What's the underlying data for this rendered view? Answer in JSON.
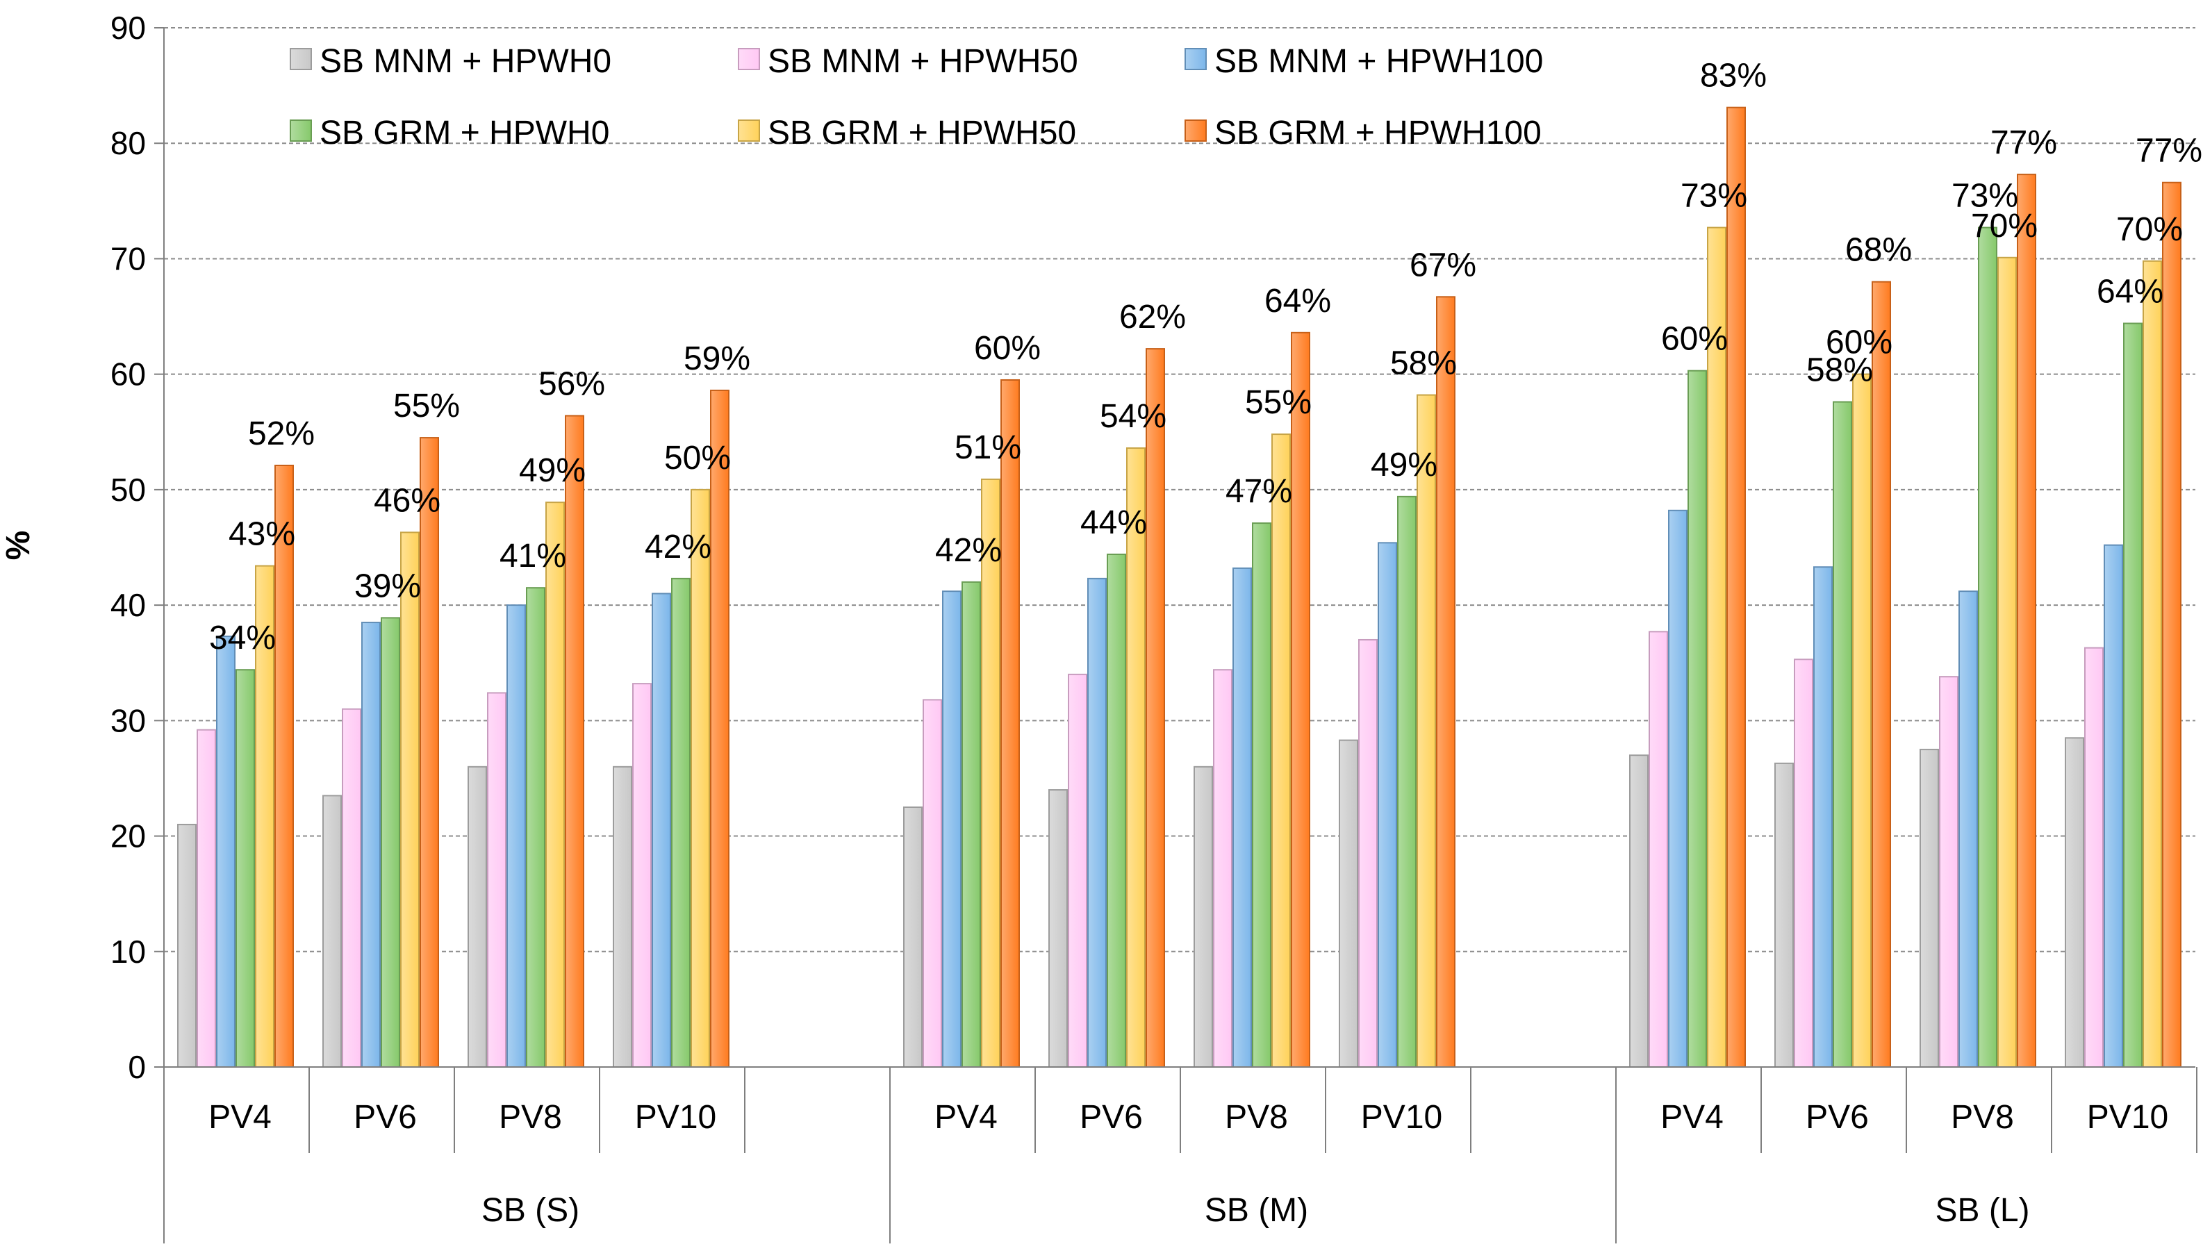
{
  "chart_data": {
    "type": "bar",
    "ylabel": "%",
    "ylim": [
      0,
      90
    ],
    "yticks": [
      0,
      10,
      20,
      30,
      40,
      50,
      60,
      70,
      80,
      90
    ],
    "grid": true,
    "legend_position": "top-left",
    "groups": [
      {
        "label": "SB (S)",
        "categories": [
          "PV4",
          "PV6",
          "PV8",
          "PV10"
        ]
      },
      {
        "label": "SB (M)",
        "categories": [
          "PV4",
          "PV6",
          "PV8",
          "PV10"
        ]
      },
      {
        "label": "SB (L)",
        "categories": [
          "PV4",
          "PV6",
          "PV8",
          "PV10"
        ]
      }
    ],
    "series": [
      {
        "name": "SB MNM + HPWH0",
        "color": "#c8c8c8",
        "values": [
          21,
          23.5,
          26,
          26,
          22.5,
          24,
          26,
          28.3,
          27,
          26.3,
          27.5,
          28.5
        ]
      },
      {
        "name": "SB MNM + HPWH50",
        "color": "#ffc8f4",
        "values": [
          29.2,
          31,
          32.4,
          33.2,
          31.8,
          34,
          34.4,
          37,
          37.7,
          35.3,
          33.8,
          36.3
        ]
      },
      {
        "name": "SB MNM + HPWH100",
        "color": "#7cb6ea",
        "values": [
          37.3,
          38.5,
          40,
          41,
          41.2,
          42.3,
          43.2,
          45.4,
          48.2,
          43.3,
          41.2,
          45.2
        ]
      },
      {
        "name": "SB GRM + HPWH0",
        "color": "#86c96b",
        "values": [
          34.4,
          38.9,
          41.5,
          42.3,
          42,
          44.4,
          47.1,
          49.4,
          60.3,
          57.6,
          72.7,
          64.4
        ]
      },
      {
        "name": "SB GRM + HPWH50",
        "color": "#ffd25a",
        "values": [
          43.4,
          46.3,
          48.9,
          50,
          50.9,
          53.6,
          54.8,
          58.2,
          72.7,
          60,
          70.1,
          69.8
        ]
      },
      {
        "name": "SB GRM + HPWH100",
        "color": "#ff7b1f",
        "values": [
          52.1,
          54.5,
          56.4,
          58.6,
          59.5,
          62.2,
          63.6,
          66.7,
          83.1,
          68,
          77.3,
          76.6
        ]
      }
    ],
    "annotations": [
      {
        "series": 3,
        "index": 0,
        "text": "34%"
      },
      {
        "series": 4,
        "index": 0,
        "text": "43%"
      },
      {
        "series": 5,
        "index": 0,
        "text": "52%"
      },
      {
        "series": 3,
        "index": 1,
        "text": "39%"
      },
      {
        "series": 4,
        "index": 1,
        "text": "46%"
      },
      {
        "series": 5,
        "index": 1,
        "text": "55%"
      },
      {
        "series": 3,
        "index": 2,
        "text": "41%"
      },
      {
        "series": 4,
        "index": 2,
        "text": "49%"
      },
      {
        "series": 5,
        "index": 2,
        "text": "56%"
      },
      {
        "series": 3,
        "index": 3,
        "text": "42%"
      },
      {
        "series": 4,
        "index": 3,
        "text": "50%"
      },
      {
        "series": 5,
        "index": 3,
        "text": "59%"
      },
      {
        "series": 3,
        "index": 4,
        "text": "42%"
      },
      {
        "series": 4,
        "index": 4,
        "text": "51%"
      },
      {
        "series": 5,
        "index": 4,
        "text": "60%"
      },
      {
        "series": 3,
        "index": 5,
        "text": "44%"
      },
      {
        "series": 4,
        "index": 5,
        "text": "54%"
      },
      {
        "series": 5,
        "index": 5,
        "text": "62%"
      },
      {
        "series": 3,
        "index": 6,
        "text": "47%"
      },
      {
        "series": 4,
        "index": 6,
        "text": "55%"
      },
      {
        "series": 5,
        "index": 6,
        "text": "64%"
      },
      {
        "series": 3,
        "index": 7,
        "text": "49%"
      },
      {
        "series": 4,
        "index": 7,
        "text": "58%"
      },
      {
        "series": 5,
        "index": 7,
        "text": "67%"
      },
      {
        "series": 3,
        "index": 8,
        "text": "60%"
      },
      {
        "series": 4,
        "index": 8,
        "text": "73%"
      },
      {
        "series": 5,
        "index": 8,
        "text": "83%"
      },
      {
        "series": 3,
        "index": 9,
        "text": "58%"
      },
      {
        "series": 4,
        "index": 9,
        "text": "60%"
      },
      {
        "series": 5,
        "index": 9,
        "text": "68%"
      },
      {
        "series": 3,
        "index": 10,
        "text": "73%"
      },
      {
        "series": 4,
        "index": 10,
        "text": "70%"
      },
      {
        "series": 5,
        "index": 10,
        "text": "77%"
      },
      {
        "series": 3,
        "index": 11,
        "text": "64%"
      },
      {
        "series": 4,
        "index": 11,
        "text": "70%"
      },
      {
        "series": 5,
        "index": 11,
        "text": "77%"
      }
    ]
  }
}
